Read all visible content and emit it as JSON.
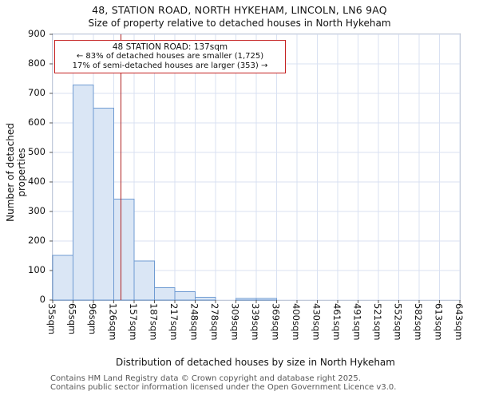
{
  "header": {
    "title": "48, STATION ROAD, NORTH HYKEHAM, LINCOLN, LN6 9AQ",
    "subtitle": "Size of property relative to detached houses in North Hykeham"
  },
  "annotation": {
    "line1": "48 STATION ROAD: 137sqm",
    "line2": "← 83% of detached houses are smaller (1,725)",
    "line3": "17% of semi-detached houses are larger (353) →"
  },
  "footer": {
    "line1": "Contains HM Land Registry data © Crown copyright and database right 2025.",
    "line2": "Contains public sector information licensed under the Open Government Licence v3.0."
  },
  "chart_data": {
    "type": "bar",
    "title": "48, STATION ROAD, NORTH HYKEHAM, LINCOLN, LN6 9AQ",
    "subtitle": "Size of property relative to detached houses in North Hykeham",
    "xlabel": "Distribution of detached houses by size in North Hykeham",
    "ylabel": "Number of detached properties",
    "categories": [
      "35sqm",
      "65sqm",
      "96sqm",
      "126sqm",
      "157sqm",
      "187sqm",
      "217sqm",
      "248sqm",
      "278sqm",
      "309sqm",
      "339sqm",
      "369sqm",
      "400sqm",
      "430sqm",
      "461sqm",
      "491sqm",
      "521sqm",
      "552sqm",
      "582sqm",
      "613sqm",
      "643sqm"
    ],
    "bin_edges": [
      35,
      65,
      96,
      126,
      157,
      187,
      217,
      248,
      278,
      309,
      339,
      369,
      400,
      430,
      461,
      491,
      521,
      552,
      582,
      613,
      643
    ],
    "values": [
      152,
      728,
      650,
      342,
      133,
      42,
      28,
      10,
      0,
      6,
      6,
      0,
      0,
      0,
      0,
      0,
      0,
      0,
      0,
      0
    ],
    "marker_value": 137,
    "marker_label": "137sqm",
    "ylim": [
      0,
      900
    ],
    "y_ticks": [
      0,
      100,
      200,
      300,
      400,
      500,
      600,
      700,
      800,
      900
    ],
    "grid": true,
    "legend": "none",
    "colors": {
      "bar_fill": "#dae6f5",
      "bar_border": "#6f9bd2",
      "marker_line": "#b02020",
      "annotation_border": "#c42020",
      "grid_line": "#d9e1f2"
    }
  }
}
